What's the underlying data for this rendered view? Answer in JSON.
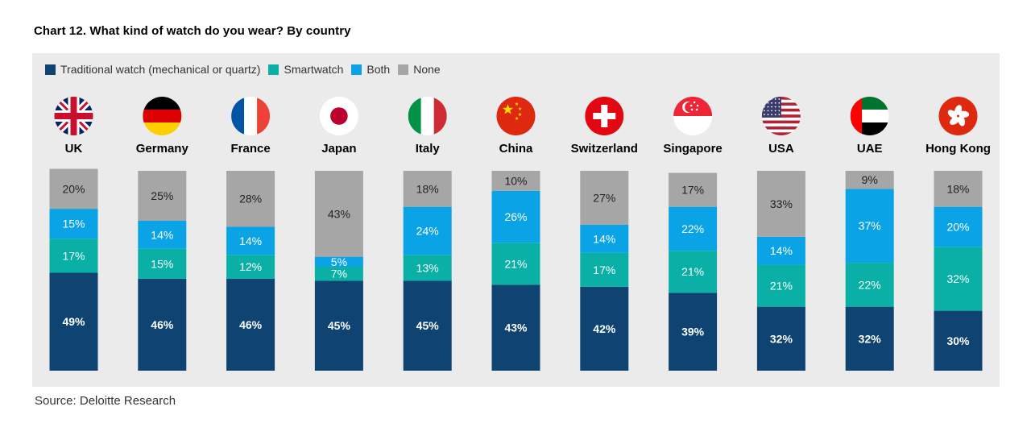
{
  "title": "Chart 12. What kind of watch do you wear? By country",
  "source": "Source: Deloitte Research",
  "colors": {
    "traditional": "#0f4472",
    "smartwatch": "#0ab0a6",
    "both": "#0aa3e5",
    "none": "#a6a6a6",
    "panel": "#ebebeb"
  },
  "chart_data": {
    "type": "bar",
    "stacked": true,
    "title": "Chart 12. What kind of watch do you wear? By country",
    "ylim": [
      0,
      100
    ],
    "categories": [
      "UK",
      "Germany",
      "France",
      "Japan",
      "Italy",
      "China",
      "Switzerland",
      "Singapore",
      "USA",
      "UAE",
      "Hong Kong"
    ],
    "flags": [
      "uk-flag",
      "germany-flag",
      "france-flag",
      "japan-flag",
      "italy-flag",
      "china-flag",
      "switzerland-flag",
      "singapore-flag",
      "usa-flag",
      "uae-flag",
      "hong-kong-flag"
    ],
    "series": [
      {
        "key": "traditional",
        "name": "Traditional watch (mechanical or quartz)",
        "values": [
          49,
          46,
          46,
          45,
          45,
          43,
          42,
          39,
          32,
          32,
          30
        ]
      },
      {
        "key": "smartwatch",
        "name": "Smartwatch",
        "values": [
          17,
          15,
          12,
          7,
          13,
          21,
          17,
          21,
          21,
          22,
          32
        ]
      },
      {
        "key": "both",
        "name": "Both",
        "values": [
          15,
          14,
          14,
          5,
          24,
          26,
          14,
          22,
          14,
          37,
          20
        ]
      },
      {
        "key": "none",
        "name": "None",
        "values": [
          20,
          25,
          28,
          43,
          18,
          10,
          27,
          17,
          33,
          9,
          18
        ]
      }
    ],
    "value_suffix": "%"
  }
}
